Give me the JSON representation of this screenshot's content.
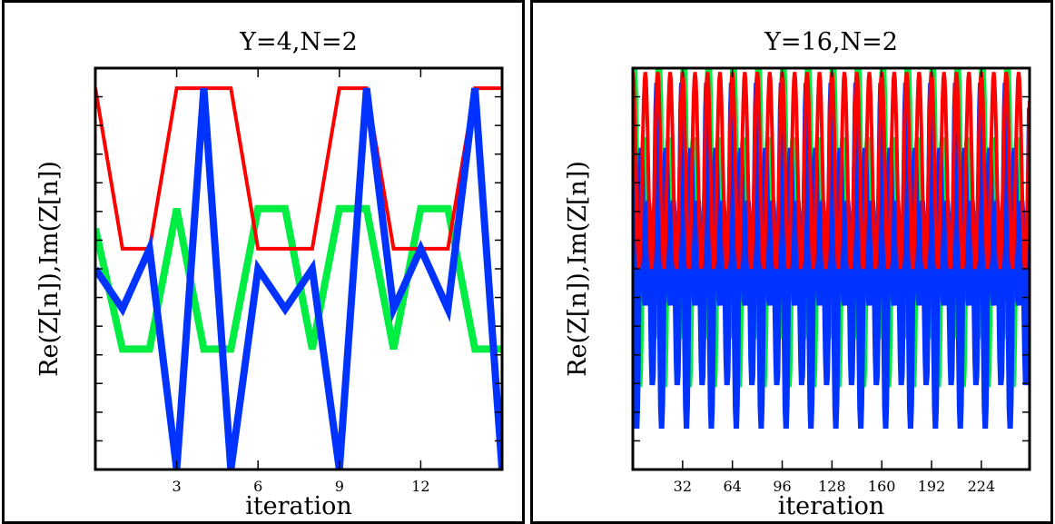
{
  "chart_data": [
    {
      "type": "line",
      "title": "Y=4,N=2",
      "xlabel": "iteration",
      "ylabel": "Re(Z[n]),Im(Z[n])",
      "xlim": [
        0,
        15
      ],
      "ylim": [
        -1,
        1
      ],
      "xticks": [
        3,
        6,
        9,
        12
      ],
      "xtick_labels": [
        "3",
        "6",
        "9",
        "12"
      ],
      "x": [
        0,
        1,
        2,
        3,
        4,
        5,
        6,
        7,
        8,
        9,
        10,
        11,
        12,
        13,
        14,
        15
      ],
      "series": [
        {
          "color": "#00ee44",
          "values": [
            0.2,
            -0.4,
            -0.4,
            0.3,
            -0.4,
            -0.4,
            0.3,
            0.3,
            -0.4,
            0.3,
            0.3,
            -0.4,
            0.3,
            0.3,
            -0.4,
            -0.4
          ]
        },
        {
          "color": "#ff0000",
          "values": [
            0.9,
            0.1,
            0.1,
            0.9,
            0.9,
            0.9,
            0.1,
            0.1,
            0.1,
            0.9,
            0.9,
            0.1,
            0.1,
            0.1,
            0.9,
            0.9
          ]
        },
        {
          "color": "#0033ff",
          "values": [
            0.0,
            -0.2,
            0.1,
            -1.0,
            0.9,
            -1.0,
            0.0,
            -0.2,
            0.0,
            -1.0,
            0.9,
            -0.2,
            0.1,
            -0.2,
            0.9,
            -1.0
          ]
        }
      ]
    },
    {
      "type": "line",
      "title": "Y=16,N=2",
      "xlabel": "iteration",
      "ylabel": "Re(Z[n]),Im(Z[n])",
      "xlim": [
        0,
        255
      ],
      "ylim": [
        -1,
        1
      ],
      "xticks": [
        32,
        64,
        96,
        128,
        160,
        192,
        224
      ],
      "xtick_labels": [
        "32",
        "64",
        "96",
        "128",
        "160",
        "192",
        "224"
      ],
      "series": [
        {
          "color": "#00ee44",
          "period": 16,
          "shape": "oscillation",
          "range": [
            -0.92,
            0.85
          ]
        },
        {
          "color": "#ff0000",
          "period": 16,
          "shape": "oscillation",
          "range": [
            0.0,
            0.98
          ]
        },
        {
          "color": "#0033ff",
          "period": 16,
          "shape": "oscillation",
          "range": [
            -0.92,
            0.95
          ]
        }
      ]
    }
  ]
}
